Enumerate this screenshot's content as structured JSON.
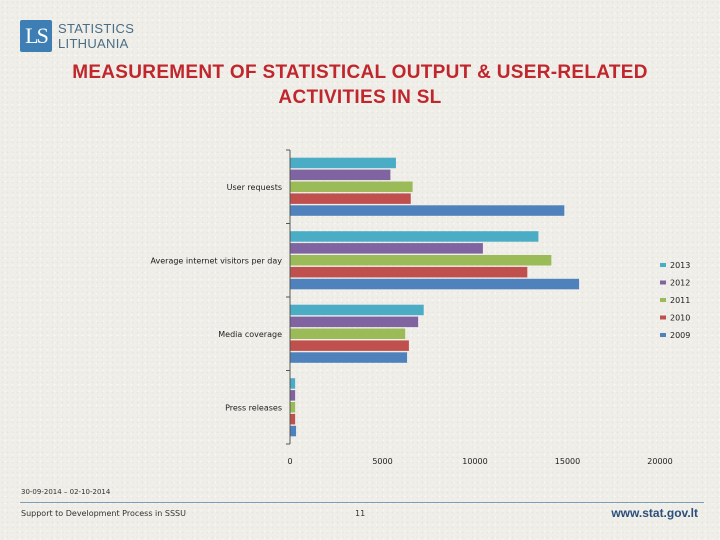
{
  "logo": {
    "line1": "STATISTICS",
    "line2": "LITHUANIA",
    "mark": "LS"
  },
  "title": {
    "line1": "MEASUREMENT OF STATISTICAL OUTPUT & USER-RELATED",
    "line2": "ACTIVITIES IN SL"
  },
  "chart_data": {
    "type": "bar",
    "orientation": "horizontal",
    "categories": [
      "User requests",
      "Average internet visitors per day",
      "Media coverage",
      "Press releases"
    ],
    "series": [
      {
        "name": "2013",
        "color": "#4bacc6",
        "values": [
          5700,
          13400,
          7200,
          250
        ]
      },
      {
        "name": "2012",
        "color": "#8064a2",
        "values": [
          5400,
          10400,
          6900,
          250
        ]
      },
      {
        "name": "2011",
        "color": "#9bbb59",
        "values": [
          6600,
          14100,
          6200,
          250
        ]
      },
      {
        "name": "2010",
        "color": "#c0504d",
        "values": [
          6500,
          12800,
          6400,
          250
        ]
      },
      {
        "name": "2009",
        "color": "#4f81bd",
        "values": [
          14800,
          15600,
          6300,
          300
        ]
      }
    ],
    "xlim": [
      0,
      20000
    ],
    "xticks": [
      0,
      5000,
      10000,
      15000,
      20000
    ],
    "xtick_labels": [
      "0",
      "5000",
      "10000",
      "15000",
      "20000"
    ],
    "legend": "right",
    "grid": false
  },
  "footer": {
    "date": "30-09-2014 – 02-10-2014",
    "left": "Support to Development Process in SSSU",
    "page": "11",
    "url": "www.stat.gov.lt"
  }
}
